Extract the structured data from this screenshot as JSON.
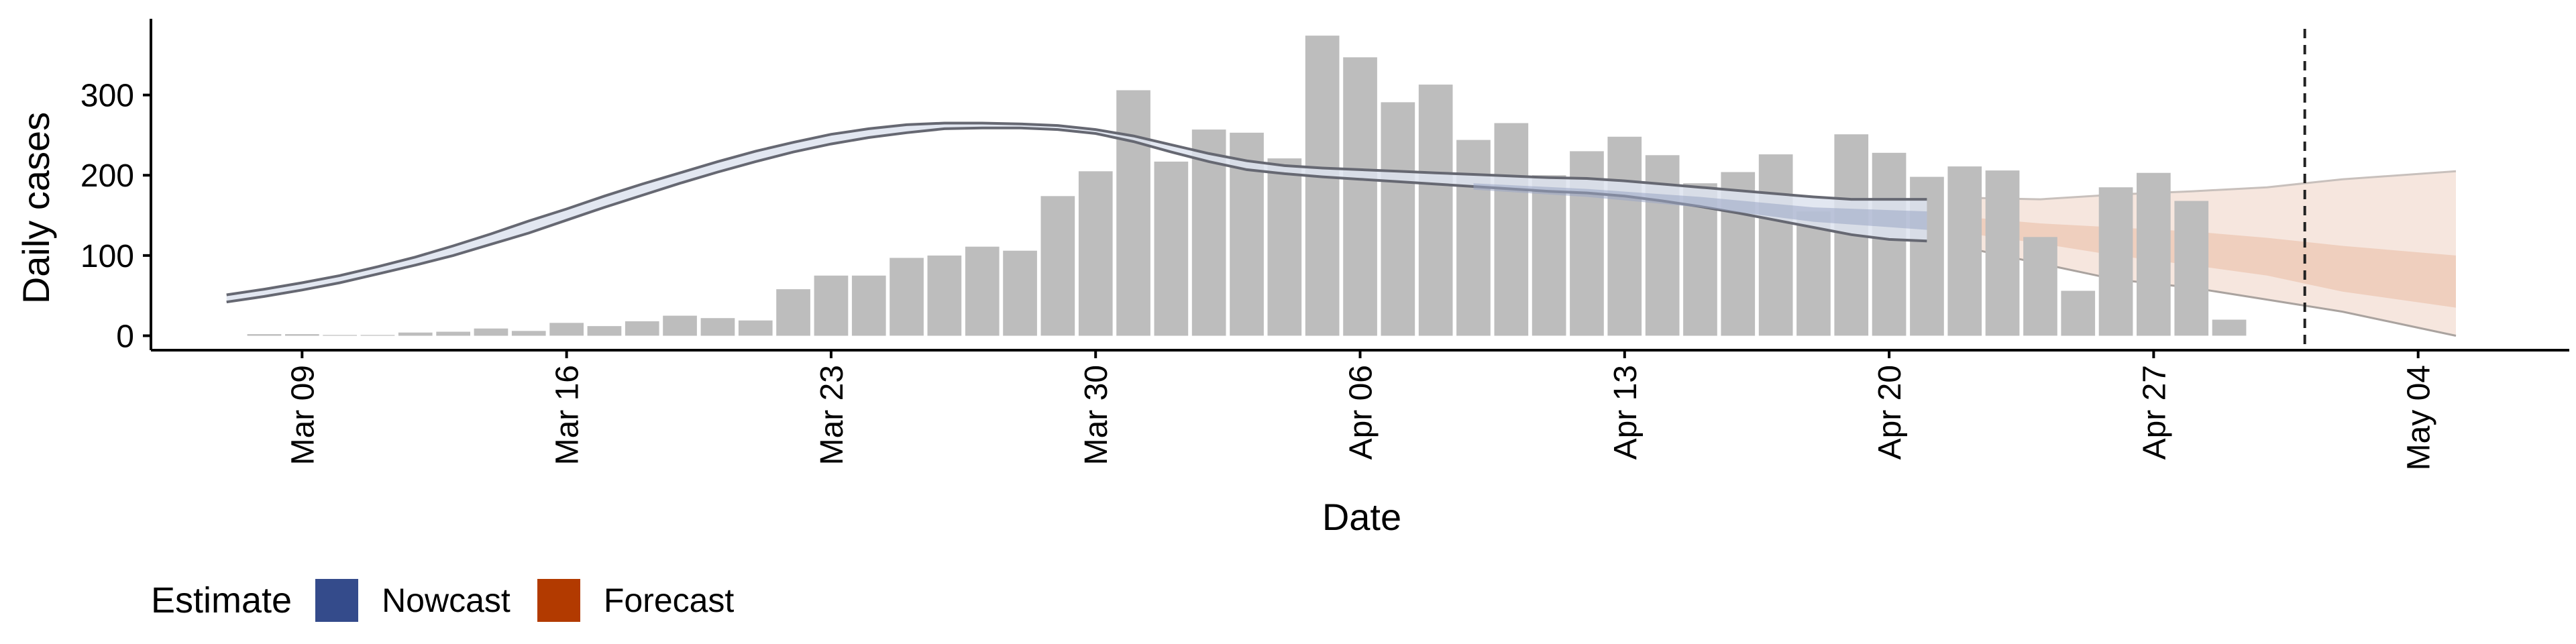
{
  "chart_data": {
    "type": "bar",
    "xlabel": "Date",
    "ylabel": "Daily cases",
    "ylim": [
      -18,
      395
    ],
    "yticks": [
      0,
      100,
      200,
      300
    ],
    "x_tick_labels": [
      "Mar 09",
      "Mar 16",
      "Mar 23",
      "Mar 30",
      "Apr 06",
      "Apr 13",
      "Apr 20",
      "Apr 27",
      "May 04"
    ],
    "x_tick_dates": [
      "2020-03-09",
      "2020-03-16",
      "2020-03-23",
      "2020-03-30",
      "2020-04-06",
      "2020-04-13",
      "2020-04-20",
      "2020-04-27",
      "2020-05-04"
    ],
    "xlim": [
      "2020-03-05",
      "2020-05-08"
    ],
    "bars": {
      "dates": [
        "2020-03-08",
        "2020-03-09",
        "2020-03-10",
        "2020-03-11",
        "2020-03-12",
        "2020-03-13",
        "2020-03-14",
        "2020-03-15",
        "2020-03-16",
        "2020-03-17",
        "2020-03-18",
        "2020-03-19",
        "2020-03-20",
        "2020-03-21",
        "2020-03-22",
        "2020-03-23",
        "2020-03-24",
        "2020-03-25",
        "2020-03-26",
        "2020-03-27",
        "2020-03-28",
        "2020-03-29",
        "2020-03-30",
        "2020-03-31",
        "2020-04-01",
        "2020-04-02",
        "2020-04-03",
        "2020-04-04",
        "2020-04-05",
        "2020-04-06",
        "2020-04-07",
        "2020-04-08",
        "2020-04-09",
        "2020-04-10",
        "2020-04-11",
        "2020-04-12",
        "2020-04-13",
        "2020-04-14",
        "2020-04-15",
        "2020-04-16",
        "2020-04-17",
        "2020-04-18",
        "2020-04-19",
        "2020-04-20",
        "2020-04-21",
        "2020-04-22",
        "2020-04-23",
        "2020-04-24",
        "2020-04-25",
        "2020-04-26",
        "2020-04-27",
        "2020-04-28",
        "2020-04-29",
        "2020-04-30"
      ],
      "values": [
        2,
        2,
        1,
        1,
        4,
        5,
        9,
        6,
        16,
        12,
        18,
        25,
        22,
        19,
        58,
        75,
        75,
        97,
        100,
        111,
        106,
        174,
        205,
        306,
        217,
        257,
        253,
        221,
        374,
        347,
        291,
        313,
        244,
        265,
        200,
        230,
        248,
        225,
        190,
        204,
        226,
        155,
        251,
        228,
        198,
        211,
        206,
        123,
        56,
        185,
        203,
        168,
        20,
        null
      ]
    },
    "estimate_dates": [
      "2020-03-07",
      "2020-03-08",
      "2020-03-09",
      "2020-03-10",
      "2020-03-11",
      "2020-03-12",
      "2020-03-13",
      "2020-03-14",
      "2020-03-15",
      "2020-03-16",
      "2020-03-17",
      "2020-03-18",
      "2020-03-19",
      "2020-03-20",
      "2020-03-21",
      "2020-03-22",
      "2020-03-23",
      "2020-03-24",
      "2020-03-25",
      "2020-03-26",
      "2020-03-27",
      "2020-03-28",
      "2020-03-29",
      "2020-03-30",
      "2020-03-31",
      "2020-04-01",
      "2020-04-02",
      "2020-04-03",
      "2020-04-04",
      "2020-04-05",
      "2020-04-06",
      "2020-04-07",
      "2020-04-08",
      "2020-04-09",
      "2020-04-10",
      "2020-04-11",
      "2020-04-12",
      "2020-04-13",
      "2020-04-14",
      "2020-04-15",
      "2020-04-16",
      "2020-04-17",
      "2020-04-18",
      "2020-04-19",
      "2020-04-20",
      "2020-04-21"
    ],
    "estimate_upper": [
      51,
      58,
      66,
      75,
      86,
      98,
      112,
      127,
      143,
      158,
      174,
      189,
      203,
      217,
      230,
      241,
      251,
      258,
      263,
      265,
      265,
      264,
      262,
      257,
      249,
      238,
      227,
      218,
      212,
      209,
      207,
      205,
      203,
      201,
      199,
      197,
      196,
      193,
      189,
      185,
      181,
      177,
      173,
      170,
      170,
      170
    ],
    "estimate_lower": [
      42,
      49,
      57,
      66,
      77,
      88,
      100,
      114,
      128,
      144,
      160,
      175,
      190,
      204,
      217,
      229,
      239,
      247,
      253,
      258,
      259,
      259,
      257,
      252,
      242,
      229,
      217,
      207,
      202,
      198,
      195,
      192,
      189,
      186,
      183,
      180,
      178,
      174,
      168,
      161,
      153,
      144,
      135,
      126,
      120,
      118
    ],
    "nowcast": {
      "dates": [
        "2020-04-09",
        "2020-04-12",
        "2020-04-15",
        "2020-04-18",
        "2020-04-21"
      ],
      "upper": [
        190,
        183,
        173,
        160,
        155
      ],
      "lower": [
        182,
        173,
        160,
        142,
        132
      ]
    },
    "forecast": {
      "dates": [
        "2020-04-22",
        "2020-04-24",
        "2020-04-26",
        "2020-04-28",
        "2020-04-30",
        "2020-05-02",
        "2020-05-05"
      ],
      "upper90": [
        172,
        170,
        176,
        180,
        185,
        195,
        205
      ],
      "lower90": [
        110,
        90,
        70,
        60,
        45,
        30,
        0
      ],
      "upper50": [
        148,
        140,
        135,
        130,
        122,
        112,
        100
      ],
      "lower50": [
        128,
        115,
        100,
        88,
        75,
        55,
        35
      ]
    },
    "forecast_start": "2020-05-01",
    "colors": {
      "bars": "#bdbdbd",
      "estimate_band": "#dde3ee",
      "estimate_line": "#666872",
      "nowcast": "#344b8b",
      "forecast": "#b23a00",
      "forecast_light": "#f6e6de",
      "forecast_mid": "#efcfbe"
    },
    "legend": {
      "title": "Estimate",
      "items": [
        {
          "label": "Nowcast",
          "color": "#344b8b"
        },
        {
          "label": "Forecast",
          "color": "#b23a00"
        }
      ]
    }
  }
}
